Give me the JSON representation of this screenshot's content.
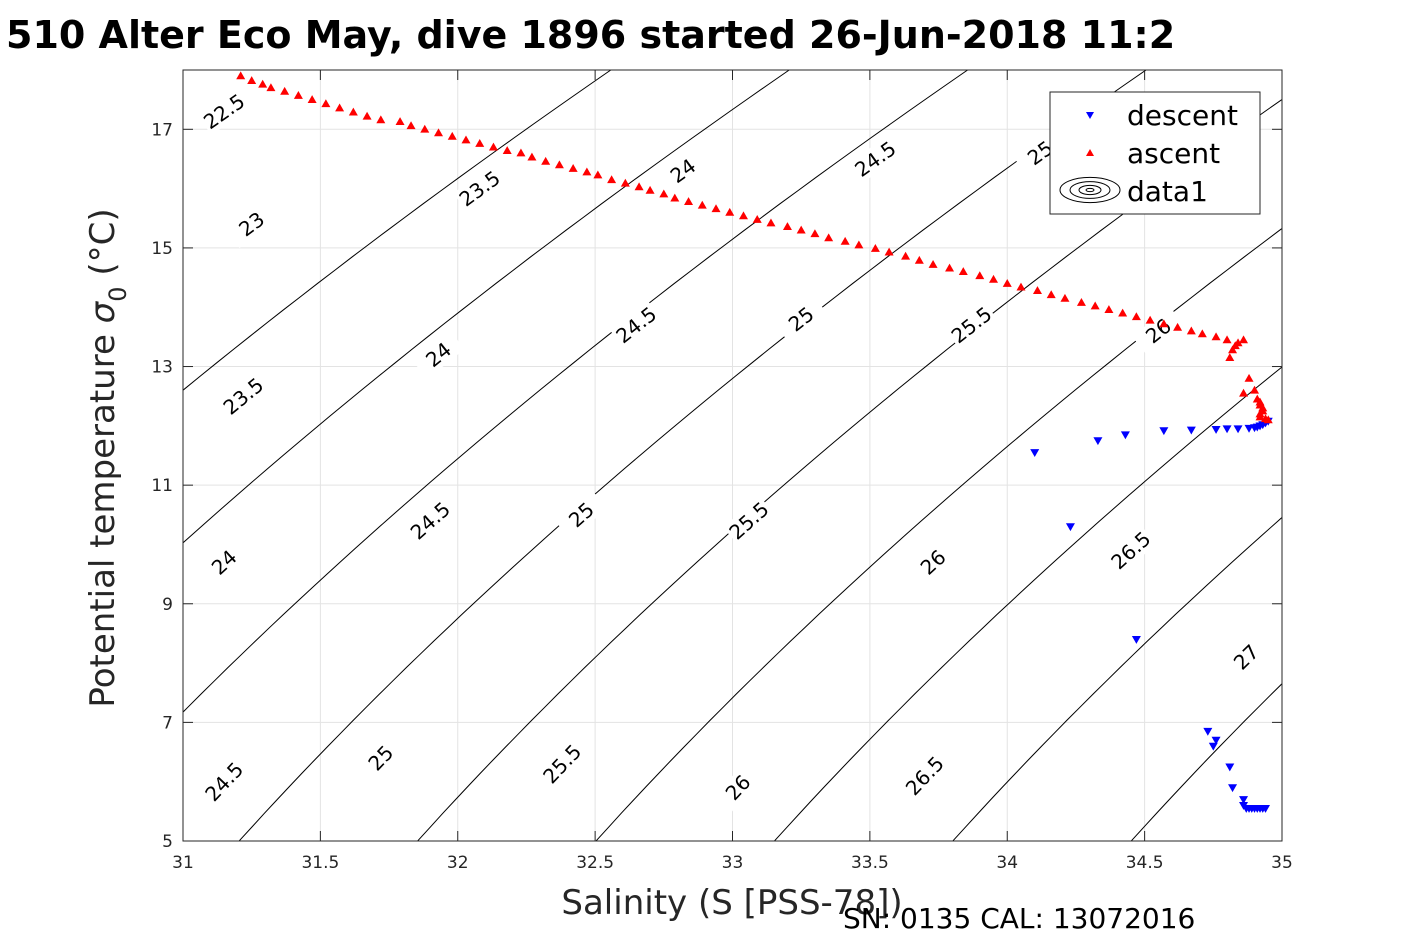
{
  "chart_data": {
    "type": "scatter",
    "title": "510 Alter Eco May, dive 1896 started 26-Jun-2018 11:2",
    "xlabel": "Salinity (S [PSS-78])",
    "ylabel_main": "Potential temperature ",
    "ylabel_symbol": "σ",
    "ylabel_sub": "0",
    "ylabel_unit": " (°C)",
    "caption": "SN: 0135  CAL: 13072016",
    "xlim": [
      31,
      35
    ],
    "ylim": [
      5,
      18
    ],
    "xticks": [
      31,
      31.5,
      32,
      32.5,
      33,
      33.5,
      34,
      34.5,
      35
    ],
    "yticks": [
      5,
      7,
      9,
      11,
      13,
      15,
      17
    ],
    "grid": true,
    "legend_position": "top-right",
    "legend": [
      {
        "name": "descent",
        "marker": "triangle-down",
        "color": "#0000ff"
      },
      {
        "name": "ascent",
        "marker": "triangle-up",
        "color": "#ff0000"
      },
      {
        "name": "data1",
        "marker": "contour",
        "color": "#000000"
      }
    ],
    "contour_levels": [
      {
        "level": 22.5,
        "text": "22.5",
        "labels": [
          [
            31.15,
            17.3
          ]
        ]
      },
      {
        "level": 23,
        "text": "23",
        "labels": [
          [
            31.25,
            15.4
          ]
        ]
      },
      {
        "level": 23.5,
        "text": "23.5",
        "labels": [
          [
            32.08,
            16.0
          ],
          [
            31.22,
            12.5
          ]
        ]
      },
      {
        "level": 24,
        "text": "24",
        "labels": [
          [
            32.82,
            16.3
          ],
          [
            31.93,
            13.2
          ],
          [
            31.15,
            9.7
          ]
        ]
      },
      {
        "level": 24.5,
        "text": "24.5",
        "labels": [
          [
            33.52,
            16.5
          ],
          [
            32.65,
            13.7
          ],
          [
            31.9,
            10.4
          ],
          [
            31.15,
            6.0
          ]
        ]
      },
      {
        "level": 25,
        "text": "25",
        "labels": [
          [
            34.12,
            16.6
          ],
          [
            33.25,
            13.8
          ],
          [
            32.45,
            10.5
          ],
          [
            31.72,
            6.4
          ]
        ]
      },
      {
        "level": 25.5,
        "text": "25.5",
        "labels": [
          [
            33.87,
            13.7
          ],
          [
            33.06,
            10.4
          ],
          [
            32.38,
            6.3
          ]
        ]
      },
      {
        "level": 26,
        "text": "26",
        "labels": [
          [
            34.55,
            13.6
          ],
          [
            33.73,
            9.7
          ],
          [
            33.02,
            5.9
          ]
        ]
      },
      {
        "level": 26.5,
        "text": "26.5",
        "labels": [
          [
            34.45,
            9.9
          ],
          [
            33.7,
            6.1
          ]
        ]
      },
      {
        "level": 27,
        "text": "27",
        "labels": [
          [
            34.87,
            8.1
          ]
        ]
      }
    ],
    "series": [
      {
        "name": "descent",
        "color": "#0000ff",
        "marker": "triangle-down",
        "points": [
          [
            34.1,
            11.55
          ],
          [
            34.23,
            10.3
          ],
          [
            34.33,
            11.75
          ],
          [
            34.43,
            11.85
          ],
          [
            34.47,
            8.4
          ],
          [
            34.57,
            11.92
          ],
          [
            34.67,
            11.93
          ],
          [
            34.73,
            6.85
          ],
          [
            34.75,
            6.6
          ],
          [
            34.76,
            6.7
          ],
          [
            34.76,
            11.94
          ],
          [
            34.8,
            11.95
          ],
          [
            34.81,
            6.25
          ],
          [
            34.82,
            5.9
          ],
          [
            34.84,
            11.95
          ],
          [
            34.86,
            5.7
          ],
          [
            34.86,
            5.6
          ],
          [
            34.87,
            5.55
          ],
          [
            34.88,
            11.96
          ],
          [
            34.88,
            5.55
          ],
          [
            34.89,
            5.55
          ],
          [
            34.9,
            11.97
          ],
          [
            34.9,
            5.55
          ],
          [
            34.91,
            5.55
          ],
          [
            34.91,
            11.98
          ],
          [
            34.92,
            5.55
          ],
          [
            34.92,
            12.0
          ],
          [
            34.93,
            5.55
          ],
          [
            34.93,
            12.02
          ],
          [
            34.94,
            5.55
          ],
          [
            34.94,
            12.05
          ],
          [
            34.95,
            12.08
          ]
        ]
      },
      {
        "name": "ascent",
        "color": "#ff0000",
        "marker": "triangle-up",
        "points": [
          [
            31.21,
            17.9
          ],
          [
            31.25,
            17.82
          ],
          [
            31.29,
            17.76
          ],
          [
            31.32,
            17.7
          ],
          [
            31.37,
            17.64
          ],
          [
            31.42,
            17.57
          ],
          [
            31.47,
            17.5
          ],
          [
            31.52,
            17.43
          ],
          [
            31.57,
            17.36
          ],
          [
            31.62,
            17.29
          ],
          [
            31.67,
            17.22
          ],
          [
            31.72,
            17.16
          ],
          [
            31.79,
            17.13
          ],
          [
            31.83,
            17.06
          ],
          [
            31.88,
            17.0
          ],
          [
            31.93,
            16.94
          ],
          [
            31.98,
            16.88
          ],
          [
            32.03,
            16.82
          ],
          [
            32.08,
            16.76
          ],
          [
            32.13,
            16.7
          ],
          [
            32.18,
            16.64
          ],
          [
            32.23,
            16.6
          ],
          [
            32.27,
            16.53
          ],
          [
            32.32,
            16.46
          ],
          [
            32.37,
            16.4
          ],
          [
            32.42,
            16.34
          ],
          [
            32.47,
            16.28
          ],
          [
            32.51,
            16.23
          ],
          [
            32.56,
            16.15
          ],
          [
            32.61,
            16.09
          ],
          [
            32.66,
            16.03
          ],
          [
            32.7,
            15.97
          ],
          [
            32.75,
            15.91
          ],
          [
            32.79,
            15.84
          ],
          [
            32.84,
            15.78
          ],
          [
            32.89,
            15.72
          ],
          [
            32.94,
            15.66
          ],
          [
            32.99,
            15.6
          ],
          [
            33.04,
            15.54
          ],
          [
            33.09,
            15.48
          ],
          [
            33.14,
            15.42
          ],
          [
            33.2,
            15.36
          ],
          [
            33.25,
            15.3
          ],
          [
            33.3,
            15.24
          ],
          [
            33.35,
            15.17
          ],
          [
            33.41,
            15.11
          ],
          [
            33.46,
            15.05
          ],
          [
            33.52,
            14.99
          ],
          [
            33.57,
            14.93
          ],
          [
            33.63,
            14.86
          ],
          [
            33.68,
            14.79
          ],
          [
            33.73,
            14.72
          ],
          [
            33.79,
            14.66
          ],
          [
            33.84,
            14.6
          ],
          [
            33.9,
            14.53
          ],
          [
            33.95,
            14.47
          ],
          [
            34.0,
            14.4
          ],
          [
            34.05,
            14.34
          ],
          [
            34.11,
            14.28
          ],
          [
            34.16,
            14.21
          ],
          [
            34.21,
            14.15
          ],
          [
            34.27,
            14.08
          ],
          [
            34.32,
            14.02
          ],
          [
            34.37,
            13.96
          ],
          [
            34.42,
            13.9
          ],
          [
            34.47,
            13.84
          ],
          [
            34.52,
            13.78
          ],
          [
            34.57,
            13.72
          ],
          [
            34.62,
            13.66
          ],
          [
            34.67,
            13.6
          ],
          [
            34.71,
            13.55
          ],
          [
            34.76,
            13.5
          ],
          [
            34.8,
            13.45
          ],
          [
            34.84,
            13.4
          ],
          [
            34.86,
            13.45
          ],
          [
            34.83,
            13.35
          ],
          [
            34.81,
            13.15
          ],
          [
            34.82,
            13.28
          ],
          [
            34.86,
            12.55
          ],
          [
            34.88,
            12.8
          ],
          [
            34.9,
            12.6
          ],
          [
            34.91,
            12.45
          ],
          [
            34.92,
            12.35
          ],
          [
            34.93,
            12.25
          ],
          [
            34.92,
            12.15
          ],
          [
            34.94,
            12.12
          ],
          [
            34.95,
            12.1
          ],
          [
            34.93,
            12.3
          ],
          [
            34.92,
            12.4
          ],
          [
            34.92,
            12.2
          ]
        ]
      }
    ]
  }
}
